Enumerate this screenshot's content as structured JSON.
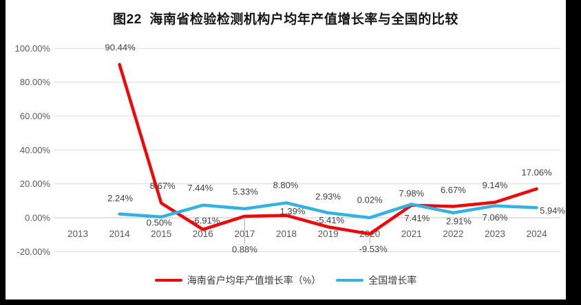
{
  "window": {
    "background": "#000000",
    "page_background": "#ffffff"
  },
  "chart_data": {
    "type": "line",
    "title": "图22  海南省检验检测机构户均年产值增长率与全国的比较",
    "categories": [
      "2013",
      "2014",
      "2015",
      "2016",
      "2017",
      "2018",
      "2019",
      "2020",
      "2021",
      "2022",
      "2023",
      "2024"
    ],
    "series": [
      {
        "name": "海南省户均年产值增长率（%）",
        "color": "#f50505",
        "values": [
          null,
          90.44,
          8.67,
          -6.91,
          0.88,
          1.39,
          -5.41,
          -9.53,
          7.41,
          6.67,
          9.14,
          17.06
        ],
        "point_labels": [
          null,
          "90.44%",
          "8.67%",
          "-6.91%",
          "0.88%",
          "1.39%",
          "-5.41%",
          "-9.53%",
          "7.41%",
          "6.67%",
          "9.14%",
          "17.06%"
        ]
      },
      {
        "name": "全国增长率",
        "color": "#2eb3e9",
        "values": [
          null,
          2.24,
          0.5,
          7.44,
          5.33,
          8.8,
          2.93,
          0.02,
          7.98,
          2.91,
          7.06,
          5.94
        ],
        "point_labels": [
          null,
          "2.24%",
          "0.50%",
          "7.44%",
          "5.33%",
          "8.80%",
          "2.93%",
          "0.02%",
          "7.98%",
          "2.91%",
          "7.06%",
          "5.94%"
        ]
      }
    ],
    "y_axis": {
      "ylim": [
        -20,
        100
      ],
      "tick_values": [
        100,
        80,
        60,
        40,
        20,
        0,
        -20
      ],
      "tick_labels": [
        "100.00%",
        "80.00%",
        "60.00%",
        "40.00%",
        "20.00%",
        "0.00%",
        "-20.00%"
      ]
    },
    "grid": true,
    "legend_position": "bottom",
    "label_format": "0.00%",
    "label_offsets": [
      [
        null,
        [
          1,
          -25
        ],
        [
          2,
          -25
        ],
        [
          4,
          -13
        ],
        [
          0,
          48
        ],
        [
          9,
          -6
        ],
        [
          3,
          -10
        ],
        [
          5,
          22
        ],
        [
          8,
          19
        ],
        [
          0,
          -24
        ],
        [
          0,
          -25
        ],
        [
          0,
          -24
        ]
      ],
      [
        null,
        [
          1,
          -23
        ],
        [
          -3,
          8
        ],
        [
          -4,
          -25
        ],
        [
          1,
          -25
        ],
        [
          -1,
          -26
        ],
        [
          0,
          -24
        ],
        [
          0,
          -26
        ],
        [
          0,
          -16
        ],
        [
          8,
          12
        ],
        [
          0,
          17
        ],
        [
          23,
          4
        ]
      ]
    ],
    "leader_lines": {
      "series_index": 0,
      "point_indices": [
        4,
        7
      ]
    },
    "colors": {
      "gridline": "#dadada",
      "zero_line": "#c3c3c3",
      "axis_text": "#595959",
      "data_label_text": "#404040",
      "leader_line": "#a8a8a8"
    }
  }
}
